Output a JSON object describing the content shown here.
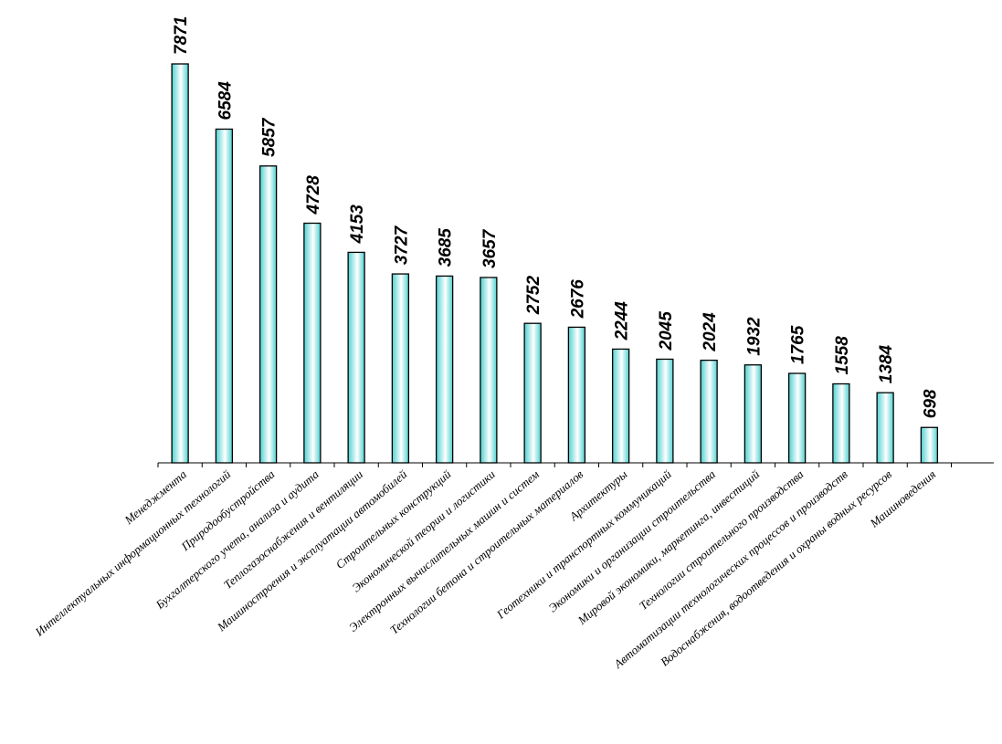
{
  "chart_data": {
    "type": "bar",
    "title": "",
    "xlabel": "",
    "ylabel": "",
    "ylim": [
      0,
      7871
    ],
    "grid": false,
    "legend": "none",
    "bar_color": "#4fd1d1",
    "bar_highlight": "#ffffff",
    "categories": [
      "Менеджмента",
      "Интеллектуальных информационных технологий",
      "Природообустройства",
      "Бухгалтерского учета, анализа и аудита",
      "Теплогазоснабжения и вентиляции",
      "Машиностроения и эксплуатации автомобилей",
      "Строительных конструкций",
      "Экономической теории и логистики",
      "Электронных вычислительных машин и систем",
      "Технологии бетона и строительных материалов",
      "Архитектуры",
      "Геотехники и транспортных коммуникаций",
      "Экономики и организации строительства",
      "Мировой экономики, маркетинга, инвестиций",
      "Технологии строительного производства",
      "Автоматизации технологических процессов и производств",
      "Водоснабжения, водоотведения и охраны водных ресурсов",
      "Машиноведения"
    ],
    "values": [
      7871,
      6584,
      5857,
      4728,
      4153,
      3727,
      3685,
      3657,
      2752,
      2676,
      2244,
      2045,
      2024,
      1932,
      1765,
      1558,
      1384,
      698
    ],
    "data_labels": [
      "7871",
      "6584",
      "5857",
      "4728",
      "4153",
      "3727",
      "3685",
      "3657",
      "2752",
      "2676",
      "2244",
      "2045",
      "2024",
      "1932",
      "1765",
      "1558",
      "1384",
      "698"
    ]
  }
}
